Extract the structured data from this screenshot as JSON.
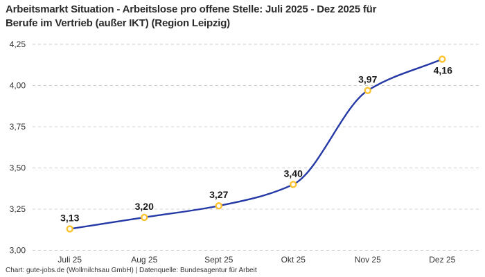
{
  "header": {
    "title_lines": [
      "Arbeitsmarkt Situation - Arbeitslose pro offene Stelle: Juli 2025 - Dez 2025 für",
      "Berufe im Vertrieb (außer IKT) (Region Leipzig)"
    ]
  },
  "chart_data": {
    "type": "line",
    "title": "Arbeitsmarkt Situation - Arbeitslose pro offene Stelle: Juli 2025 - Dez 2025 für Berufe im Vertrieb (außer IKT) (Region Leipzig)",
    "categories": [
      "Juli 25",
      "Aug 25",
      "Sept 25",
      "Okt 25",
      "Nov 25",
      "Dez 25"
    ],
    "values": [
      3.13,
      3.2,
      3.27,
      3.4,
      3.97,
      4.16
    ],
    "value_labels": [
      "3,13",
      "3,20",
      "3,27",
      "3,40",
      "3,97",
      "4,16"
    ],
    "value_label_positions": [
      "above",
      "above",
      "above",
      "above",
      "above",
      "below"
    ],
    "y_ticks": [
      3.0,
      3.25,
      3.5,
      3.75,
      4.0,
      4.25
    ],
    "y_tick_labels": [
      "3,00",
      "3,25",
      "3,50",
      "3,75",
      "4,00",
      "4,25"
    ],
    "ylim": [
      3.0,
      4.25
    ],
    "xlabel": "",
    "ylabel": "",
    "grid": "horizontal-dashed",
    "legend": "none",
    "curve": "monotone",
    "colors": {
      "line": "#2439a5",
      "marker_ring": "#fdc230",
      "marker_fill": "#ffffff",
      "gridline": "#cccccc",
      "tick_label": "#333333",
      "data_label": "#1a1a1a"
    }
  },
  "footer": {
    "credit": "Chart: gute-jobs.de (Wollmilchsau GmbH) | Datenquelle: Bundesagentur für Arbeit"
  }
}
